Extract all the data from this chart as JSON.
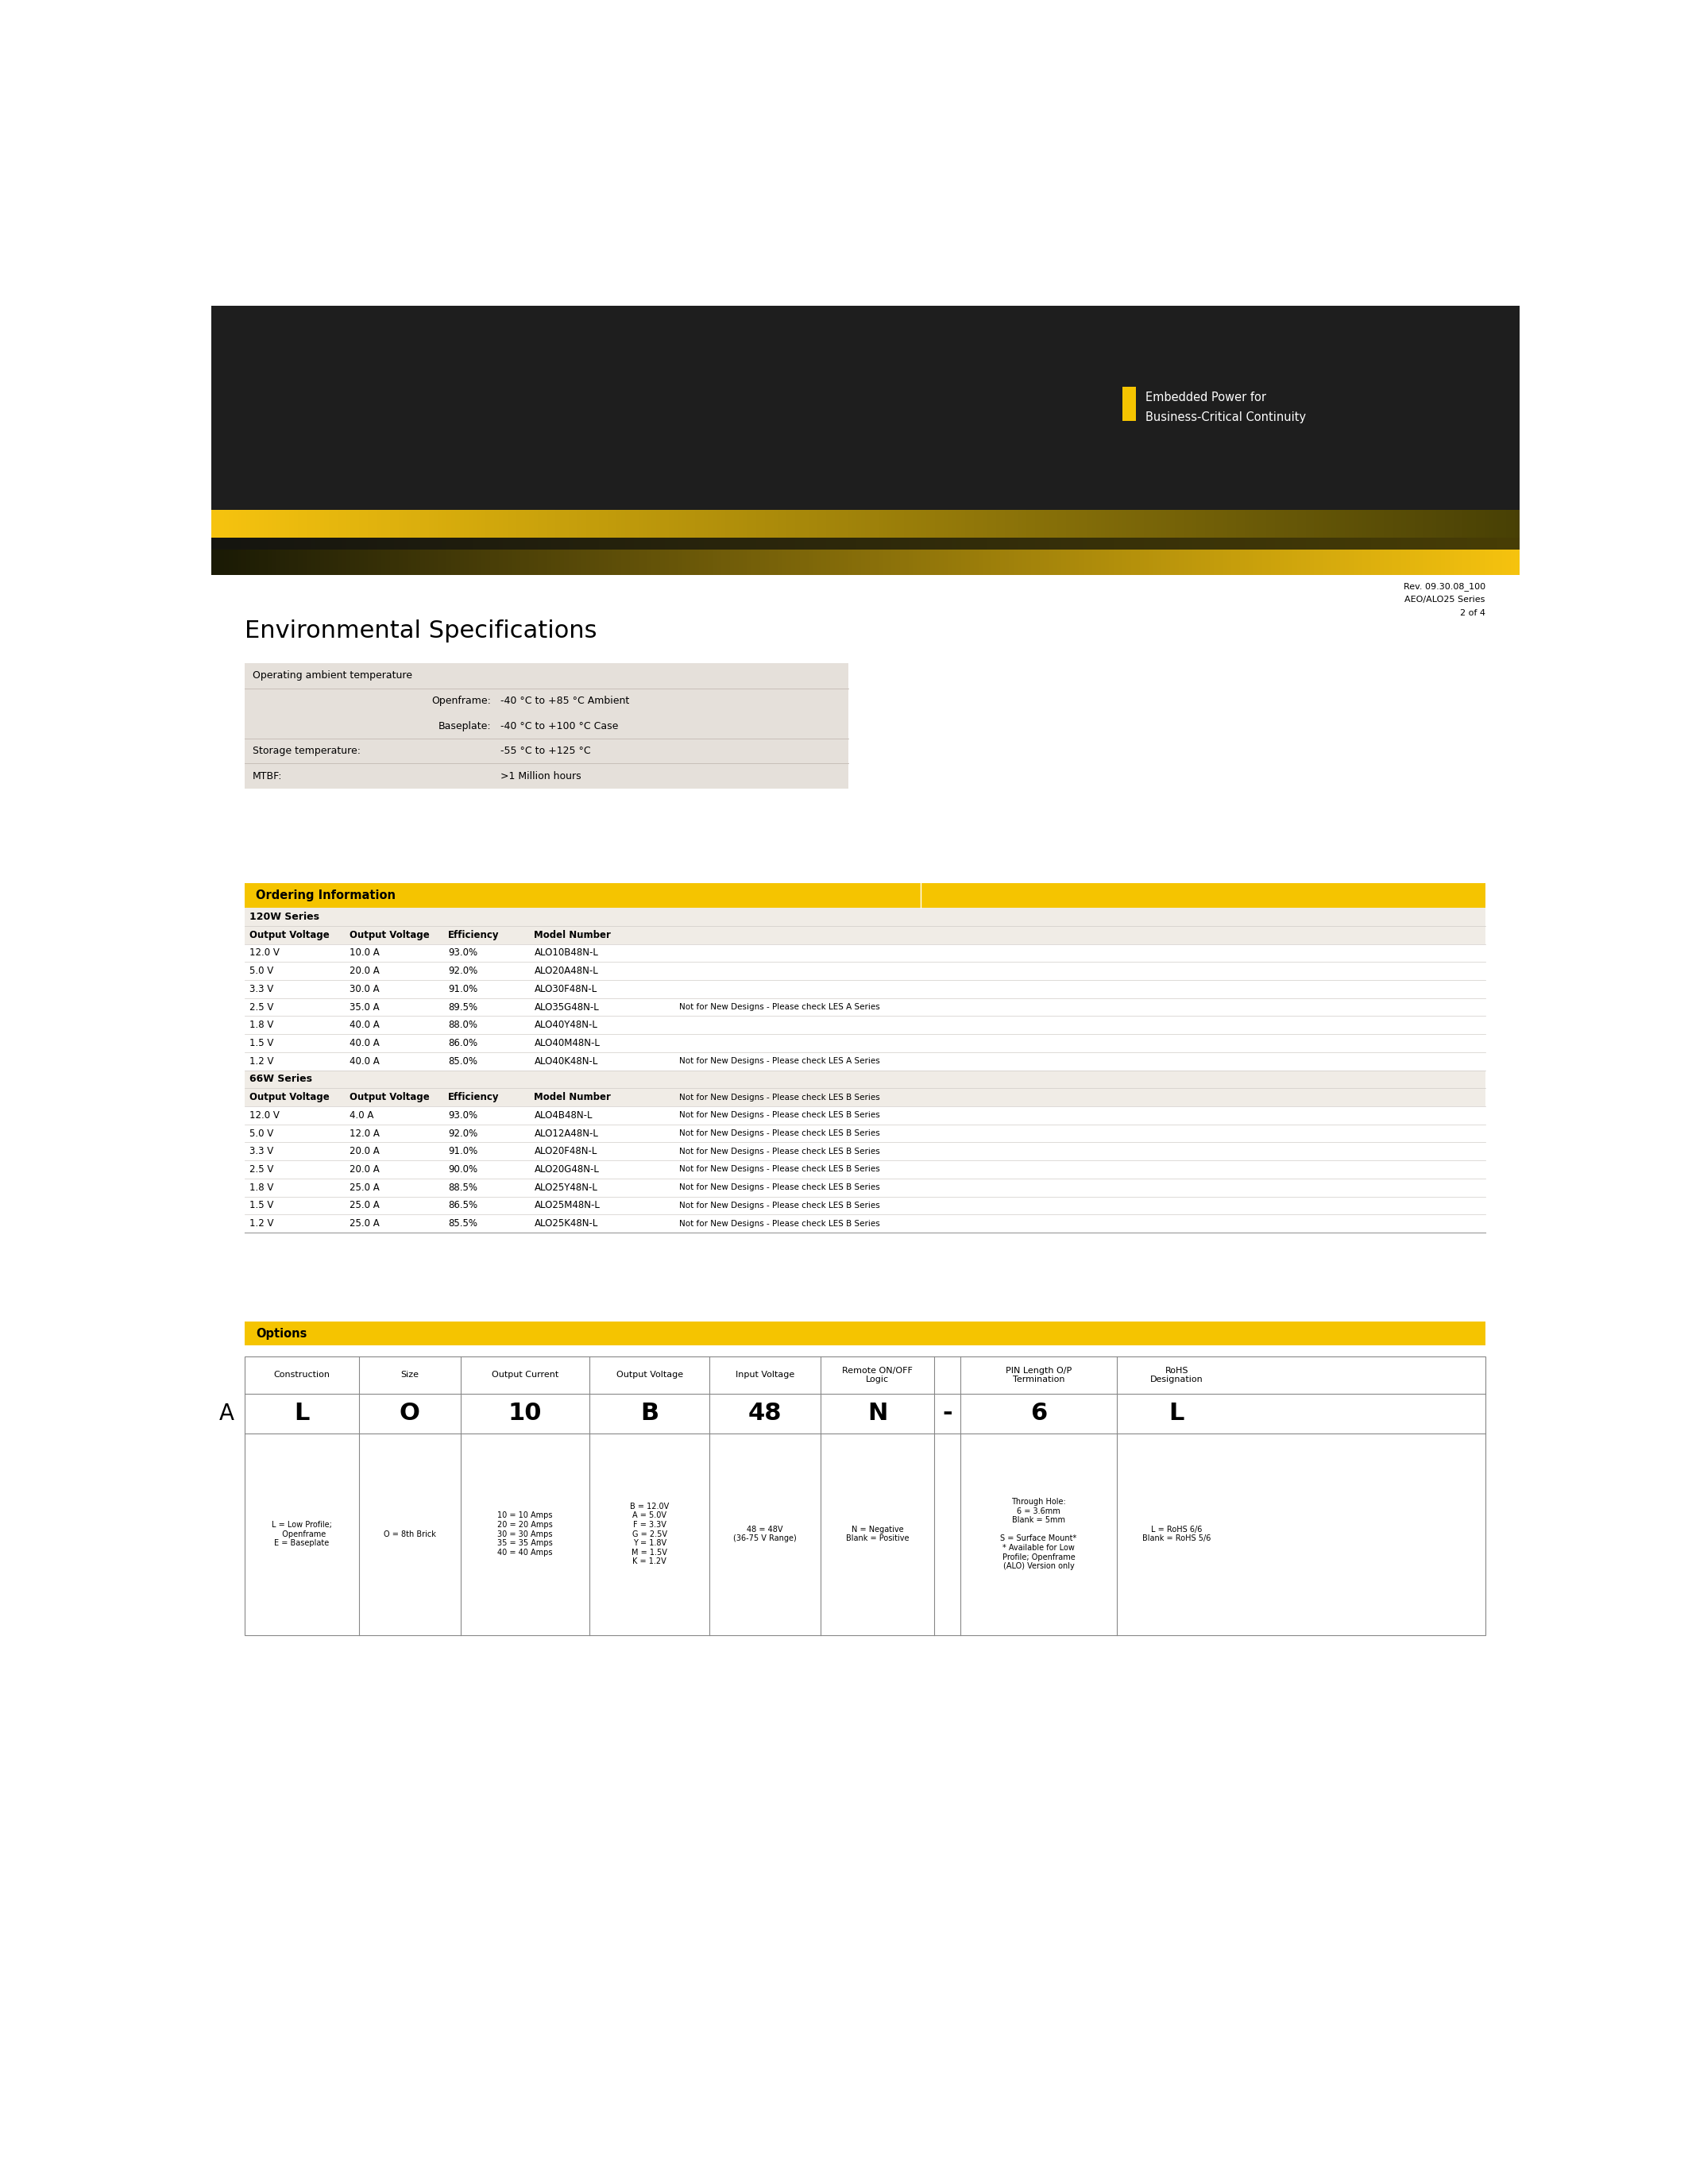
{
  "page_bg": "#ffffff",
  "header_bg": "#1e1e1e",
  "logo_text_line1": "Embedded Power for",
  "logo_text_line2": "Business-Critical Continuity",
  "logo_text_color": "#ffffff",
  "logo_square_color": "#f5c400",
  "rev_text_line1": "Rev. 09.30.08_100",
  "rev_text_line2": "AEO/ALO25 Series",
  "rev_text_line3": "2 of 4",
  "env_title": "Environmental Specifications",
  "env_table_bg": "#e5e0da",
  "ordering_title": "Ordering Information",
  "ordering_header_bg": "#f5c400",
  "series_120w_label": "120W Series",
  "col_headers": [
    "Output Voltage",
    "Output Voltage",
    "Efficiency",
    "Model Number"
  ],
  "series_120w_data": [
    [
      "12.0 V",
      "10.0 A",
      "93.0%",
      "ALO10B48N-L",
      ""
    ],
    [
      "5.0 V",
      "20.0 A",
      "92.0%",
      "ALO20A48N-L",
      ""
    ],
    [
      "3.3 V",
      "30.0 A",
      "91.0%",
      "ALO30F48N-L",
      ""
    ],
    [
      "2.5 V",
      "35.0 A",
      "89.5%",
      "ALO35G48N-L",
      "Not for New Designs - Please check LES A Series"
    ],
    [
      "1.8 V",
      "40.0 A",
      "88.0%",
      "ALO40Y48N-L",
      ""
    ],
    [
      "1.5 V",
      "40.0 A",
      "86.0%",
      "ALO40M48N-L",
      ""
    ],
    [
      "1.2 V",
      "40.0 A",
      "85.0%",
      "ALO40K48N-L",
      "Not for New Designs - Please check LES A Series"
    ]
  ],
  "series_66w_label": "66W Series",
  "series_66w_data": [
    [
      "12.0 V",
      "4.0 A",
      "93.0%",
      "ALO4B48N-L",
      "Not for New Designs - Please check LES B Series"
    ],
    [
      "5.0 V",
      "12.0 A",
      "92.0%",
      "ALO12A48N-L",
      "Not for New Designs - Please check LES B Series"
    ],
    [
      "3.3 V",
      "20.0 A",
      "91.0%",
      "ALO20F48N-L",
      "Not for New Designs - Please check LES B Series"
    ],
    [
      "2.5 V",
      "20.0 A",
      "90.0%",
      "ALO20G48N-L",
      "Not for New Designs - Please check LES B Series"
    ],
    [
      "1.8 V",
      "25.0 A",
      "88.5%",
      "ALO25Y48N-L",
      "Not for New Designs - Please check LES B Series"
    ],
    [
      "1.5 V",
      "25.0 A",
      "86.5%",
      "ALO25M48N-L",
      "Not for New Designs - Please check LES B Series"
    ],
    [
      "1.2 V",
      "25.0 A",
      "85.5%",
      "ALO25K48N-L",
      "Not for New Designs - Please check LES B Series"
    ]
  ],
  "options_title": "Options",
  "options_col_names": [
    "Construction",
    "Size",
    "Output Current",
    "Output Voltage",
    "Input Voltage",
    "Remote ON/OFF\nLogic",
    "",
    "PIN Length O/P\nTermination",
    "RoHS\nDesignation"
  ],
  "options_a_values": [
    "L",
    "O",
    "10",
    "B",
    "48",
    "N",
    "-",
    "6",
    "L"
  ],
  "options_a_desc": [
    "L = Low Profile;\n  Openframe\nE = Baseplate",
    "O = 8th Brick",
    "10 = 10 Amps\n20 = 20 Amps\n30 = 30 Amps\n35 = 35 Amps\n40 = 40 Amps",
    "B = 12.0V\nA = 5.0V\nF = 3.3V\nG = 2.5V\nY = 1.8V\nM = 1.5V\nK = 1.2V",
    "48 = 48V\n(36-75 V Range)",
    "N = Negative\nBlank = Positive",
    "",
    "Through Hole:\n6 = 3.6mm\nBlank = 5mm\n\nS = Surface Mount*\n* Available for Low\nProfile; Openframe\n(ALO) Version only",
    "L = RoHS 6/6\nBlank = RoHS 5/6"
  ]
}
